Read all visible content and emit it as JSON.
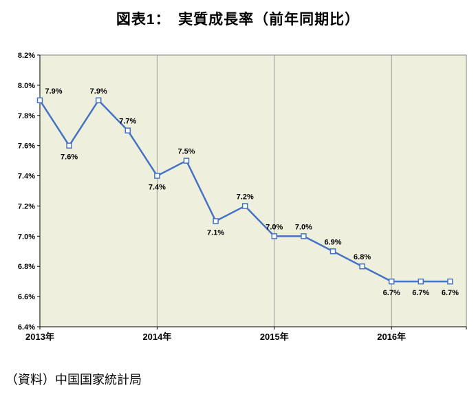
{
  "title": "図表1：　実質成長率（前年同期比）",
  "source": "（資料）中国国家統計局",
  "chart_data": {
    "type": "line",
    "title": "図表1： 実質成長率（前年同期比）",
    "x": [
      "2013Q1",
      "2013Q2",
      "2013Q3",
      "2013Q4",
      "2014Q1",
      "2014Q2",
      "2014Q3",
      "2014Q4",
      "2015Q1",
      "2015Q2",
      "2015Q3",
      "2015Q4",
      "2016Q1",
      "2016Q2",
      "2016Q3"
    ],
    "values": [
      7.9,
      7.6,
      7.9,
      7.7,
      7.4,
      7.5,
      7.1,
      7.2,
      7.0,
      7.0,
      6.9,
      6.8,
      6.7,
      6.7,
      6.7
    ],
    "data_labels": [
      "7.9%",
      "7.6%",
      "7.9%",
      "7.7%",
      "7.4%",
      "7.5%",
      "7.1%",
      "7.2%",
      "7.0%",
      "7.0%",
      "6.9%",
      "6.8%",
      "6.7%",
      "6.7%",
      "6.7%"
    ],
    "label_positions": [
      "above",
      "below",
      "above",
      "above",
      "below",
      "above",
      "below",
      "above",
      "above",
      "above",
      "above",
      "above",
      "below",
      "below",
      "below"
    ],
    "x_tick_labels": [
      "2013年",
      "2014年",
      "2015年",
      "2016年"
    ],
    "x_tick_indices": [
      0,
      4,
      8,
      12
    ],
    "y_ticks": [
      "8.2%",
      "8.0%",
      "7.8%",
      "7.6%",
      "7.4%",
      "7.2%",
      "7.0%",
      "6.8%",
      "6.6%",
      "6.4%"
    ],
    "ylim": [
      6.4,
      8.2
    ],
    "y_step": 0.2,
    "grid": "vertical-year-separators",
    "legend": "none",
    "line_color": "#4472C4",
    "marker": "hollow-square",
    "marker_fill": "#ffffff",
    "plot_bg": "#EFEFDE",
    "grid_color": "#999999",
    "border_color": "#808080",
    "axis_color": "#000000"
  }
}
